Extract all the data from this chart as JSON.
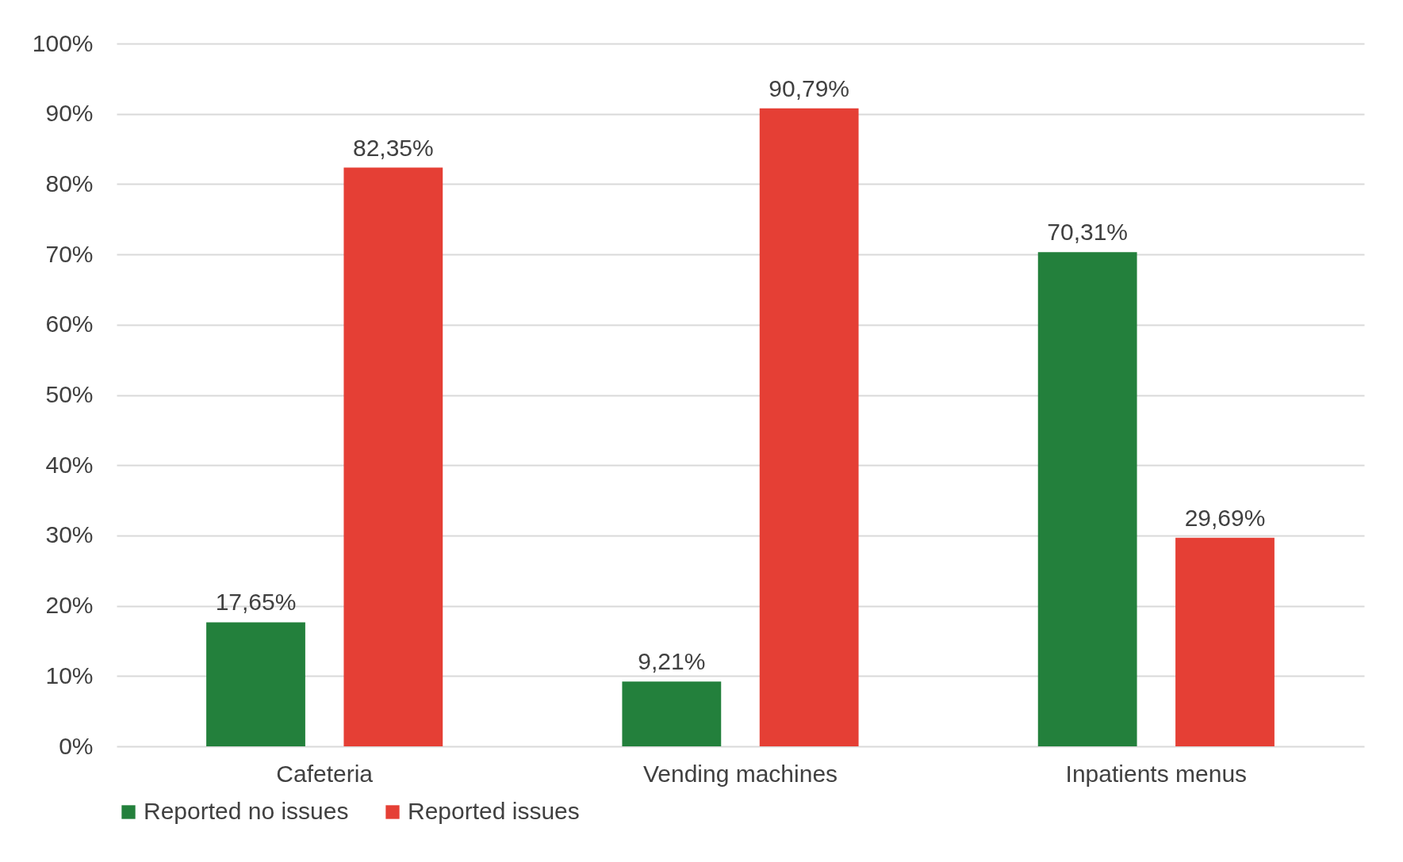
{
  "chart_data": {
    "type": "bar",
    "categories": [
      "Cafeteria",
      "Vending machines",
      "Inpatients menus"
    ],
    "series": [
      {
        "name": "Reported no issues",
        "color": "#23803c",
        "values": [
          17.65,
          9.21,
          70.31
        ],
        "value_labels": [
          "17,65%",
          "9,21%",
          "70,31%"
        ]
      },
      {
        "name": "Reported issues",
        "color": "#e53f35",
        "values": [
          82.35,
          90.79,
          29.69
        ],
        "value_labels": [
          "82,35%",
          "90,79%",
          "29,69%"
        ]
      }
    ],
    "ylim": [
      0,
      100
    ],
    "yticks": [
      {
        "value": 0,
        "label": "0%"
      },
      {
        "value": 10,
        "label": "10%"
      },
      {
        "value": 20,
        "label": "20%"
      },
      {
        "value": 30,
        "label": "30%"
      },
      {
        "value": 40,
        "label": "40%"
      },
      {
        "value": 50,
        "label": "50%"
      },
      {
        "value": 60,
        "label": "60%"
      },
      {
        "value": 70,
        "label": "70%"
      },
      {
        "value": 80,
        "label": "80%"
      },
      {
        "value": 90,
        "label": "90%"
      },
      {
        "value": 100,
        "label": "100%"
      }
    ],
    "grid": "y",
    "legend": "bottom"
  }
}
